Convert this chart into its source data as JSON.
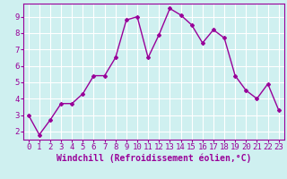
{
  "x": [
    0,
    1,
    2,
    3,
    4,
    5,
    6,
    7,
    8,
    9,
    10,
    11,
    12,
    13,
    14,
    15,
    16,
    17,
    18,
    19,
    20,
    21,
    22,
    23
  ],
  "y": [
    3.0,
    1.8,
    2.7,
    3.7,
    3.7,
    4.3,
    5.4,
    5.4,
    6.5,
    8.8,
    9.0,
    6.5,
    7.9,
    9.5,
    9.1,
    8.5,
    7.4,
    8.2,
    7.7,
    5.4,
    4.5,
    4.0,
    4.9,
    3.3
  ],
  "line_color": "#990099",
  "marker": "D",
  "marker_size": 2,
  "line_width": 1.0,
  "bg_color": "#cff0f0",
  "grid_color": "#ffffff",
  "xlabel": "Windchill (Refroidissement éolien,°C)",
  "xlim": [
    -0.5,
    23.5
  ],
  "ylim": [
    1.5,
    9.8
  ],
  "yticks": [
    2,
    3,
    4,
    5,
    6,
    7,
    8,
    9
  ],
  "xticks": [
    0,
    1,
    2,
    3,
    4,
    5,
    6,
    7,
    8,
    9,
    10,
    11,
    12,
    13,
    14,
    15,
    16,
    17,
    18,
    19,
    20,
    21,
    22,
    23
  ],
  "tick_label_color": "#990099",
  "axis_color": "#990099",
  "tick_font_size": 6.5,
  "xlabel_font_size": 7.0
}
